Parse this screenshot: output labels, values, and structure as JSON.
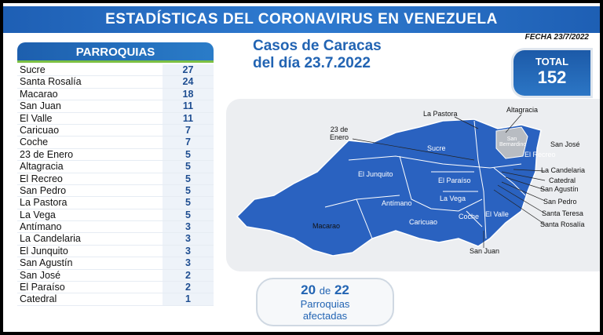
{
  "header": {
    "title": "ESTADÍSTICAS DEL CORONAVIRUS EN VENEZUELA",
    "date": "FECHA 23/7/2022"
  },
  "table": {
    "header": "PARROQUIAS",
    "rows": [
      [
        "Sucre",
        27
      ],
      [
        "Santa Rosalía",
        24
      ],
      [
        "Macarao",
        18
      ],
      [
        "San Juan",
        11
      ],
      [
        "El Valle",
        11
      ],
      [
        "Caricuao",
        7
      ],
      [
        "Coche",
        7
      ],
      [
        "23 de Enero",
        5
      ],
      [
        "Altagracia",
        5
      ],
      [
        "El Recreo",
        5
      ],
      [
        "San Pedro",
        5
      ],
      [
        "La Pastora",
        5
      ],
      [
        "La Vega",
        5
      ],
      [
        "Antímano",
        3
      ],
      [
        "La Candelaria",
        3
      ],
      [
        "El Junquito",
        3
      ],
      [
        "San Agustín",
        3
      ],
      [
        "San José",
        2
      ],
      [
        "El Paraíso",
        2
      ],
      [
        "Catedral",
        1
      ]
    ]
  },
  "subtitle": [
    "Casos de Caracas",
    "del día 23.7.2022"
  ],
  "total": {
    "label": "TOTAL",
    "value": 152
  },
  "map": {
    "labels": [
      "La Pastora",
      "Altagracia",
      "23 de Enero",
      "San José",
      "Sucre",
      "San Bernardino",
      "El Recreo",
      "La Candelaria",
      "El Junquito",
      "Catedral",
      "El Paraíso",
      "San Agustín",
      "La Vega",
      "San Pedro",
      "Antímano",
      "Santa Teresa",
      "Coche",
      "El Valle",
      "Caricuao",
      "Santa Rosalía",
      "Macarao",
      "San Juan"
    ]
  },
  "footer": {
    "affected": 20,
    "of": "de",
    "total": 22,
    "caption": "Parroquias afectadas"
  }
}
